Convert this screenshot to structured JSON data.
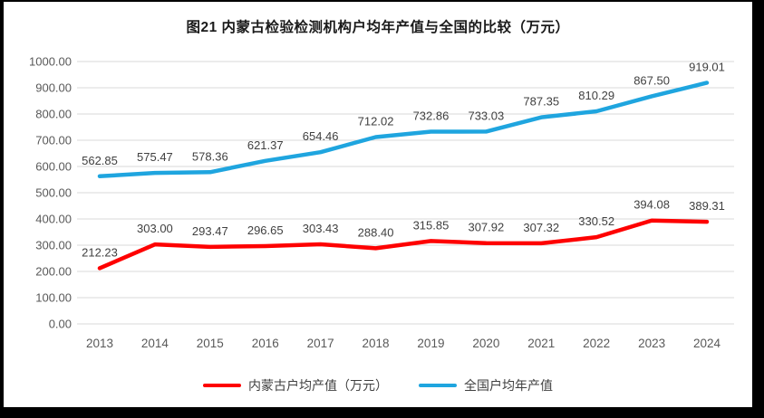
{
  "frame": {
    "background_color": "#000000",
    "page_color": "#ffffff"
  },
  "chart_data": {
    "type": "line",
    "title": "图21 内蒙古检验检测机构户均年产值与全国的比较（万元）",
    "categories": [
      "2013",
      "2014",
      "2015",
      "2016",
      "2017",
      "2018",
      "2019",
      "2020",
      "2021",
      "2022",
      "2023",
      "2024"
    ],
    "series": [
      {
        "name": "内蒙古户均产值（万元）",
        "color": "#fe0000",
        "values": [
          212.23,
          303.0,
          293.47,
          296.65,
          303.43,
          288.4,
          315.85,
          307.92,
          307.32,
          330.52,
          394.08,
          389.31
        ]
      },
      {
        "name": "全国户均年产值",
        "color": "#1fa5df",
        "values": [
          562.85,
          575.47,
          578.36,
          621.37,
          654.46,
          712.02,
          732.86,
          733.03,
          787.35,
          810.29,
          867.5,
          919.01
        ]
      }
    ],
    "xlabel": "",
    "ylabel": "",
    "ylim": [
      0,
      1000
    ],
    "ytick_step": 100,
    "ytick_labels": [
      "0.00",
      "100.00",
      "200.00",
      "300.00",
      "400.00",
      "500.00",
      "600.00",
      "700.00",
      "800.00",
      "900.00",
      "1000.00"
    ],
    "grid": true,
    "gridline_color": "#d9d9d9",
    "tick_label_color": "#595959",
    "data_label_color": "#404040",
    "data_labels": true,
    "legend_position": "bottom"
  }
}
